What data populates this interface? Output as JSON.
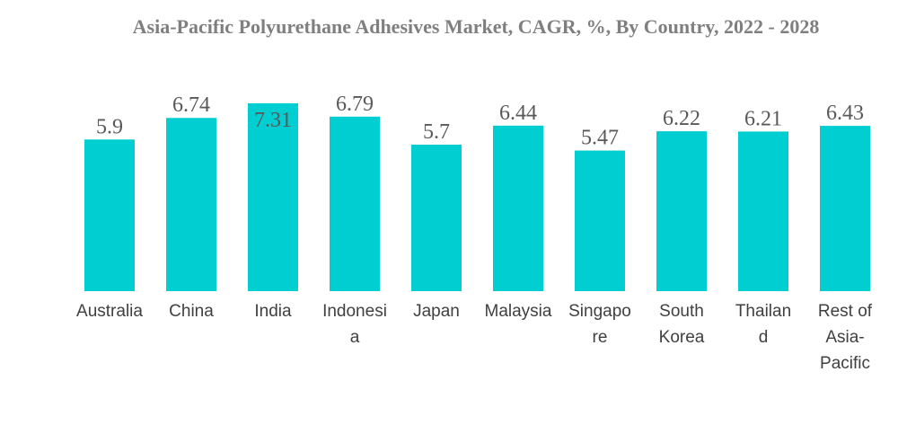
{
  "chart_data": {
    "type": "bar",
    "title": "Asia-Pacific Polyurethane Adhesives Market, CAGR, %, By Country, 2022 - 2028",
    "categories": [
      "Australia",
      "China",
      "India",
      "Indonesia",
      "Japan",
      "Malaysia",
      "Singapore",
      "South Korea",
      "Thailand",
      "Rest of Asia-Pacific"
    ],
    "category_label_lines": [
      [
        "Australia"
      ],
      [
        "China"
      ],
      [
        "India"
      ],
      [
        "Indonesi",
        "a"
      ],
      [
        "Japan"
      ],
      [
        "Malaysia"
      ],
      [
        "Singapo",
        "re"
      ],
      [
        "South",
        "Korea"
      ],
      [
        "Thailan",
        "d"
      ],
      [
        "Rest of",
        "Asia-",
        "Pacific"
      ]
    ],
    "values": [
      5.9,
      6.74,
      7.31,
      6.79,
      5.7,
      6.44,
      5.47,
      6.22,
      6.21,
      6.43
    ],
    "value_labels": [
      "5.9",
      "6.74",
      "7.31",
      "6.79",
      "5.7",
      "6.44",
      "5.47",
      "6.22",
      "6.21",
      "6.43"
    ],
    "xlabel": "",
    "ylabel": "",
    "grid": false,
    "legend": "none",
    "bar_color": "#00CED1"
  }
}
